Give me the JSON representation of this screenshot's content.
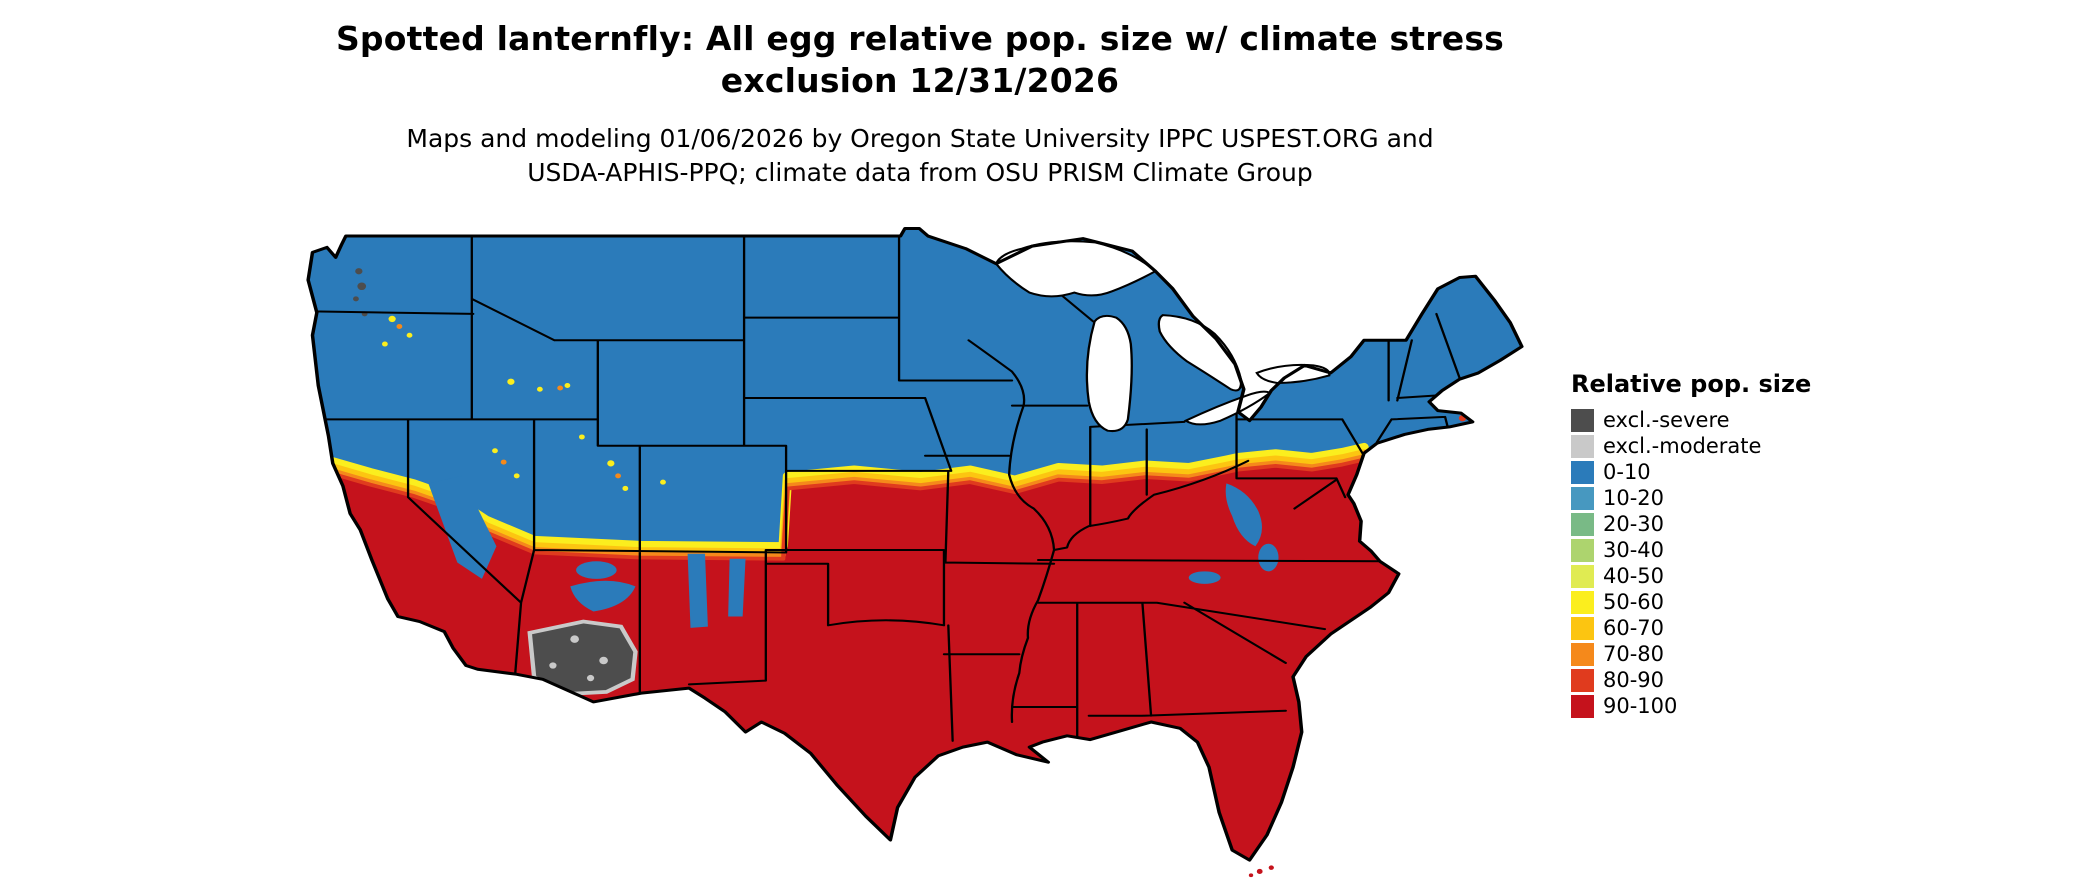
{
  "header": {
    "title_line1": "Spotted lanternfly: All egg relative pop. size w/ climate stress",
    "title_line2": "exclusion 12/31/2026",
    "subtitle_line1": "Maps and modeling 01/06/2026 by Oregon State University IPPC USPEST.ORG and",
    "subtitle_line2": "USDA-APHIS-PPQ; climate data from OSU PRISM Climate Group"
  },
  "legend": {
    "title": "Relative pop. size",
    "entries": [
      {
        "label": "excl.-severe",
        "color": "#4d4d4d"
      },
      {
        "label": "excl.-moderate",
        "color": "#c9c9c9"
      },
      {
        "label": "0-10",
        "color": "#2b7bba"
      },
      {
        "label": "10-20",
        "color": "#4798c0"
      },
      {
        "label": "20-30",
        "color": "#79ba86"
      },
      {
        "label": "30-40",
        "color": "#add46e"
      },
      {
        "label": "40-50",
        "color": "#e0eb52"
      },
      {
        "label": "50-60",
        "color": "#fbee1e"
      },
      {
        "label": "60-70",
        "color": "#fcc511"
      },
      {
        "label": "70-80",
        "color": "#f5891b"
      },
      {
        "label": "80-90",
        "color": "#e03b1e"
      },
      {
        "label": "90-100",
        "color": "#c5121c"
      }
    ]
  },
  "map": {
    "area": "Contiguous United States",
    "description": "Raster map: northern states shown in 0-10 class (blue), southern states in 90-100 class (red), a yellow-orange transition band across the central latitudes and mountain west, and a dark gray climate-stress exclusion zone in southern Arizona with light gray moderate-exclusion fringe.",
    "north_class": "0-10",
    "south_class": "90-100",
    "transition_classes": [
      "50-60",
      "60-70",
      "70-80",
      "80-90"
    ],
    "exclusion_zone": "southern Arizona"
  }
}
